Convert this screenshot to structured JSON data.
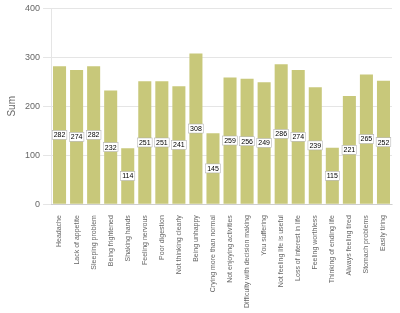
{
  "chart_data": {
    "type": "bar",
    "categories": [
      "Headache",
      "Lack of appetite",
      "Sleeping problem",
      "Being frightened",
      "Shaking hands",
      "Feeling nervous",
      "Poor digestion",
      "Not thinking clearly",
      "Being unhappy",
      "Crying more than normal",
      "Not enjoying activities",
      "Difficulty with decision making",
      "You suffering",
      "Not feeling life is useful",
      "Loss of interest in life",
      "Feeling worthless",
      "Thinking of ending life",
      "Always feeling tired",
      "Stomach problems",
      "Easily tiring"
    ],
    "values": [
      282,
      274,
      282,
      232,
      114,
      251,
      251,
      241,
      308,
      145,
      259,
      256,
      249,
      286,
      274,
      239,
      115,
      221,
      265,
      252
    ],
    "color": "#c8c87a",
    "ylabel": "Sum",
    "ylim": [
      0,
      400
    ],
    "yticks": [
      0,
      100,
      200,
      300,
      400
    ],
    "grid": true,
    "data_labels": true
  }
}
